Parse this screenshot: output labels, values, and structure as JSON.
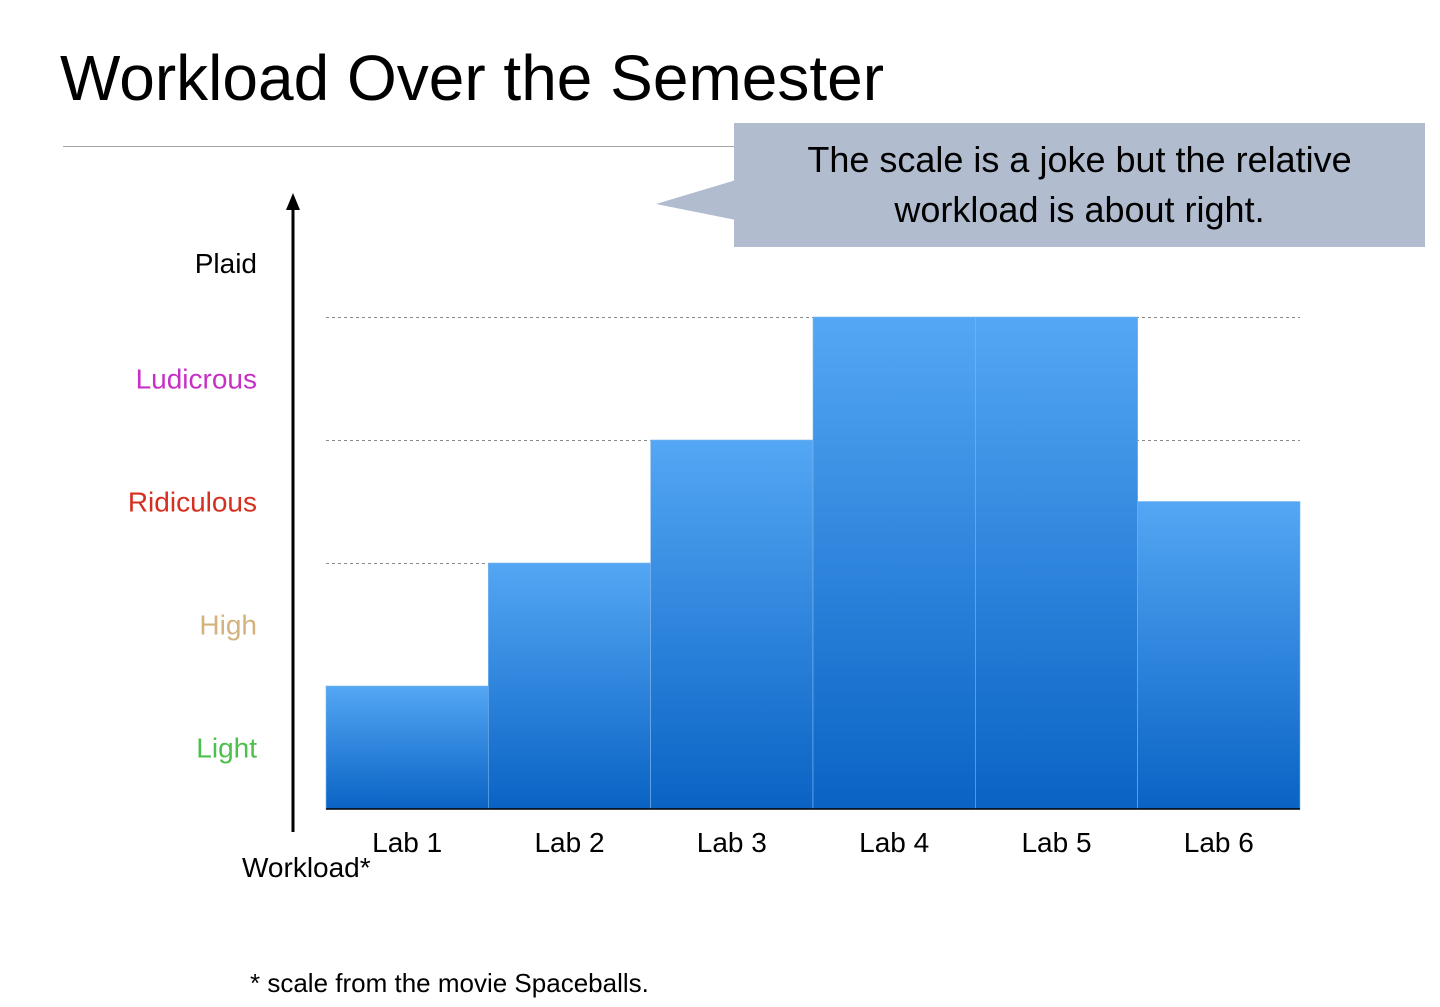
{
  "title": "Workload Over the Semester",
  "callout": {
    "text": "The scale is a joke but the relative workload is about right."
  },
  "footnote": "*  scale from the movie Spaceballs.",
  "chart_data": {
    "type": "bar",
    "title": "Workload Over the Semester",
    "xlabel": "",
    "ylabel": "Workload*",
    "categories": [
      "Lab 1",
      "Lab 2",
      "Lab 3",
      "Lab 4",
      "Lab 5",
      "Lab 6"
    ],
    "values": [
      1,
      2,
      3,
      4,
      4,
      2.5
    ],
    "ylim": [
      0,
      4.4
    ],
    "y_levels": [
      {
        "label": "Light",
        "value": 0.5,
        "color": "#4cc04a"
      },
      {
        "label": "High",
        "value": 1.5,
        "color": "#d4b27d"
      },
      {
        "label": "Ridiculous",
        "value": 2.5,
        "color": "#d52f1f"
      },
      {
        "label": "Ludicrous",
        "value": 3.5,
        "color": "#c630c6"
      },
      {
        "label": "Plaid",
        "value": 4.44,
        "color": "#000000"
      }
    ],
    "gridlines": [
      2,
      3,
      4
    ],
    "bar_color_top": "#54a7f4",
    "bar_color_bottom": "#0a63c4"
  }
}
